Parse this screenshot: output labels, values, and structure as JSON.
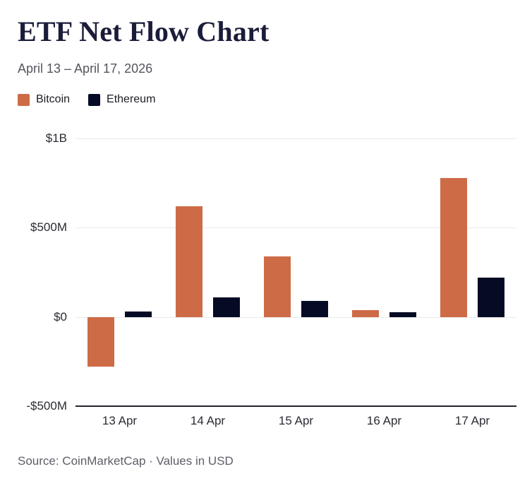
{
  "chart_data": {
    "type": "bar",
    "title": "ETF Net Flow Chart",
    "subtitle": "April 13 – April 17, 2026",
    "source": "Source: CoinMarketCap · Values in USD",
    "categories": [
      "13 Apr",
      "14 Apr",
      "15 Apr",
      "16 Apr",
      "17 Apr"
    ],
    "series": [
      {
        "name": "Bitcoin",
        "color": "#CE6B47",
        "values_millions_usd": [
          -280,
          620,
          340,
          40,
          780
        ]
      },
      {
        "name": "Ethereum",
        "color": "#050B24",
        "values_millions_usd": [
          30,
          110,
          90,
          25,
          220
        ]
      }
    ],
    "unit": "USD (millions)",
    "ylim": [
      -500,
      1000
    ],
    "yticks": [
      {
        "value": 1000,
        "label": "$1B"
      },
      {
        "value": 500,
        "label": "$500M"
      },
      {
        "value": 0,
        "label": "$0"
      },
      {
        "value": -500,
        "label": "-$500M"
      }
    ],
    "grid": "horizontal",
    "legend_position": "top-left"
  },
  "style": {
    "title_color": "#1A1C3A",
    "subtitle_color": "#54555E",
    "axis_label_color": "#2B2B33",
    "gridline_color": "#EAEAEA",
    "axis_line_color": "#23242E",
    "source_color": "#5D5E68",
    "background": "#FFFFFF"
  }
}
